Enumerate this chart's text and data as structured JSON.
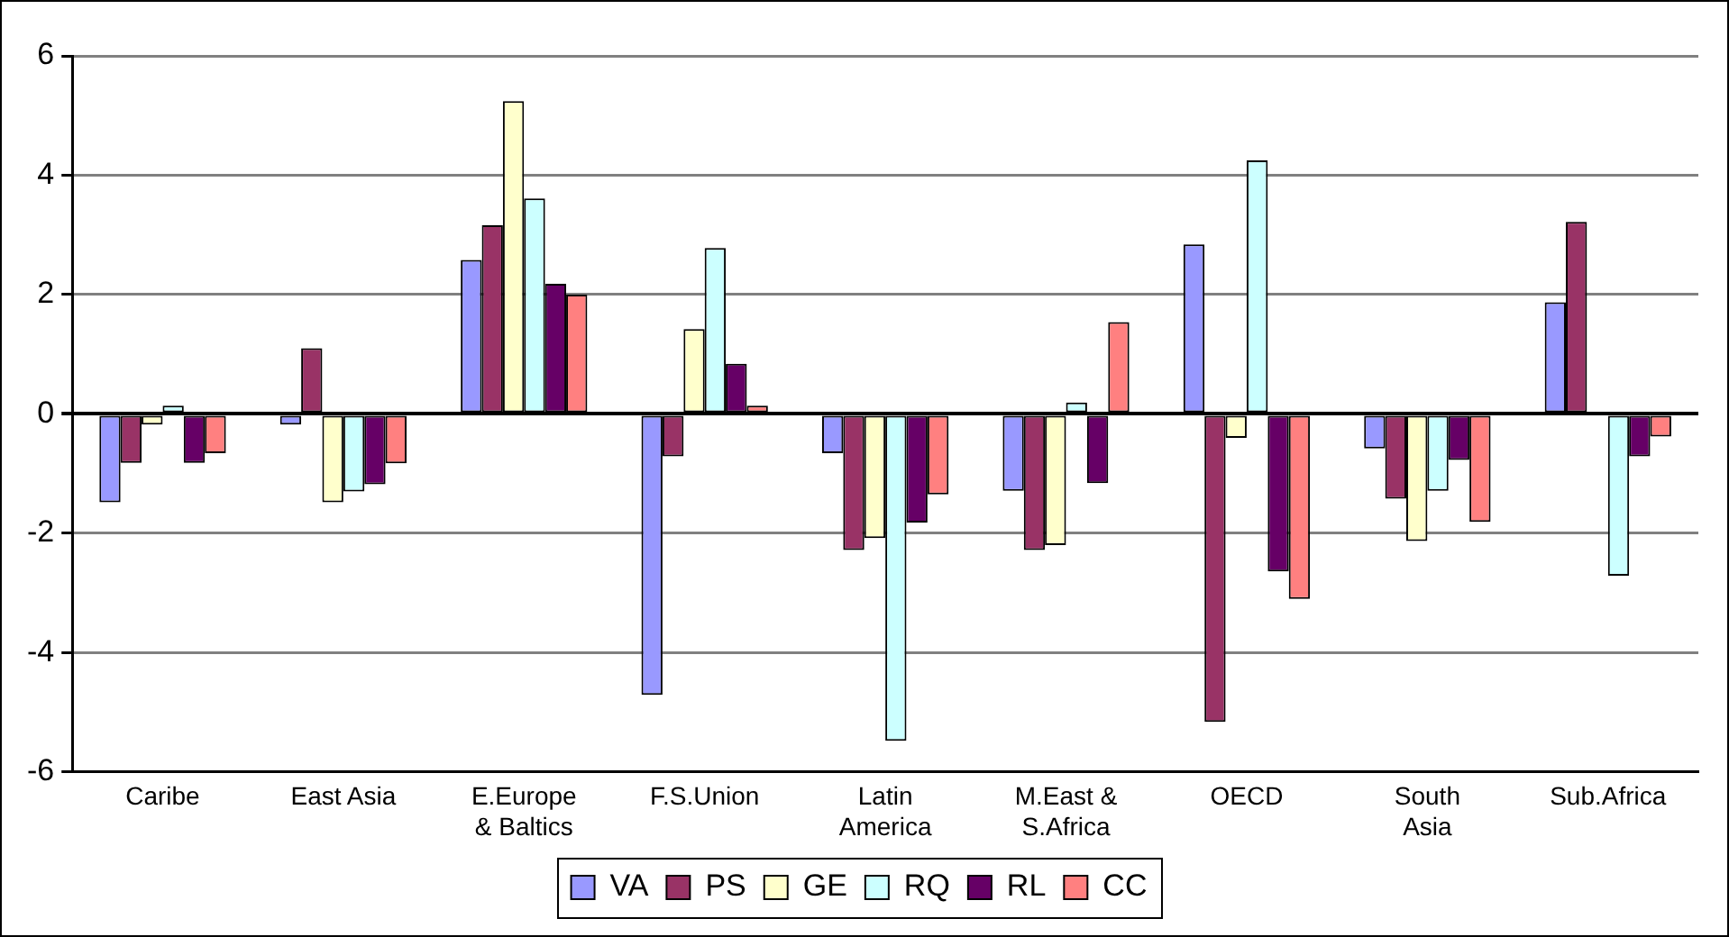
{
  "chart_data": {
    "type": "bar",
    "categories": [
      "Caribe",
      "East Asia",
      "E.Europe\n& Baltics",
      "F.S.Union",
      "Latin\nAmerica",
      "M.East &\nS.Africa",
      "OECD",
      "South\nAsia",
      "Sub.Africa"
    ],
    "series": [
      {
        "name": "VA",
        "color": "#9999ff",
        "values": [
          -1.48,
          -0.18,
          2.58,
          -4.71,
          -0.66,
          -1.29,
          2.84,
          -0.58,
          1.87
        ]
      },
      {
        "name": "PS",
        "color": "#993366",
        "values": [
          -0.82,
          1.1,
          3.16,
          -0.71,
          -2.28,
          -2.28,
          -5.16,
          -1.42,
          3.22
        ]
      },
      {
        "name": "GE",
        "color": "#ffffcc",
        "values": [
          -0.18,
          -1.48,
          5.24,
          1.42,
          -2.08,
          -2.2,
          -0.4,
          -2.13,
          0
        ]
      },
      {
        "name": "RQ",
        "color": "#ccffff",
        "values": [
          0.14,
          -1.3,
          3.61,
          2.78,
          -5.48,
          0.19,
          4.25,
          -1.29,
          -2.71
        ]
      },
      {
        "name": "RL",
        "color": "#660066",
        "values": [
          -0.82,
          -1.18,
          2.18,
          0.84,
          -1.82,
          -1.16,
          -2.64,
          -0.77,
          -0.71
        ]
      },
      {
        "name": "CC",
        "color": "#ff8080",
        "values": [
          -0.66,
          -0.83,
          2.0,
          0.14,
          -1.35,
          1.54,
          -3.1,
          -1.81,
          -0.38
        ]
      }
    ],
    "ylim": [
      -6,
      6
    ],
    "yticks": [
      -6,
      -4,
      -2,
      0,
      2,
      4,
      6
    ],
    "grid": "y",
    "legend": "bottom"
  }
}
